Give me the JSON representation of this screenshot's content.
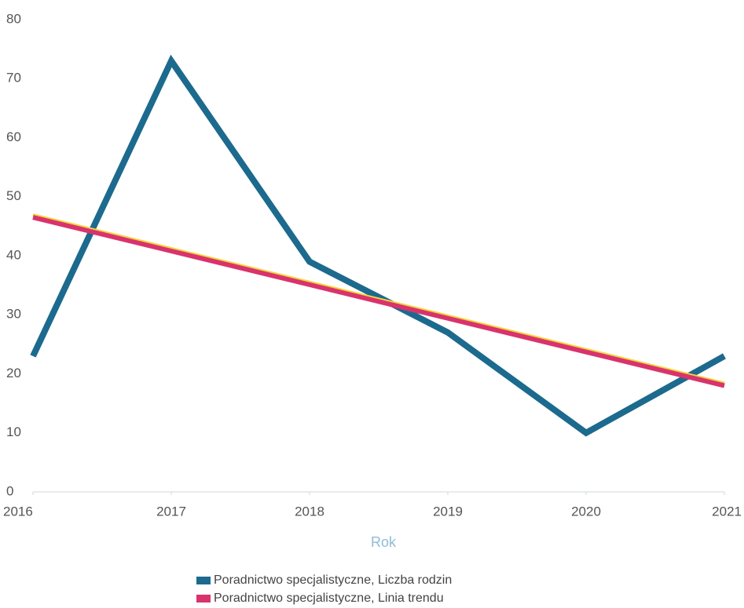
{
  "chart_data": {
    "type": "line",
    "x": [
      2016,
      2017,
      2018,
      2019,
      2020,
      2021
    ],
    "xlim": [
      2016,
      2021
    ],
    "xticks": [
      2016,
      2017,
      2018,
      2019,
      2020,
      2021
    ],
    "ylim": [
      0,
      80
    ],
    "yticks": [
      0,
      10,
      20,
      30,
      40,
      50,
      60,
      70,
      80
    ],
    "xlabel": "Rok",
    "grid": false,
    "legend": "bottom",
    "series": [
      {
        "name": "Poradnictwo specjalistyczne, Liczba rodzin",
        "color": "#1c6a8e",
        "values": [
          23,
          73,
          39,
          27,
          10,
          23
        ]
      },
      {
        "name": "Poradnictwo specjalistyczne, Linia trendu",
        "color": "#d9336e",
        "values": [
          46.5,
          40.8,
          35.1,
          29.4,
          23.7,
          18
        ]
      }
    ]
  }
}
